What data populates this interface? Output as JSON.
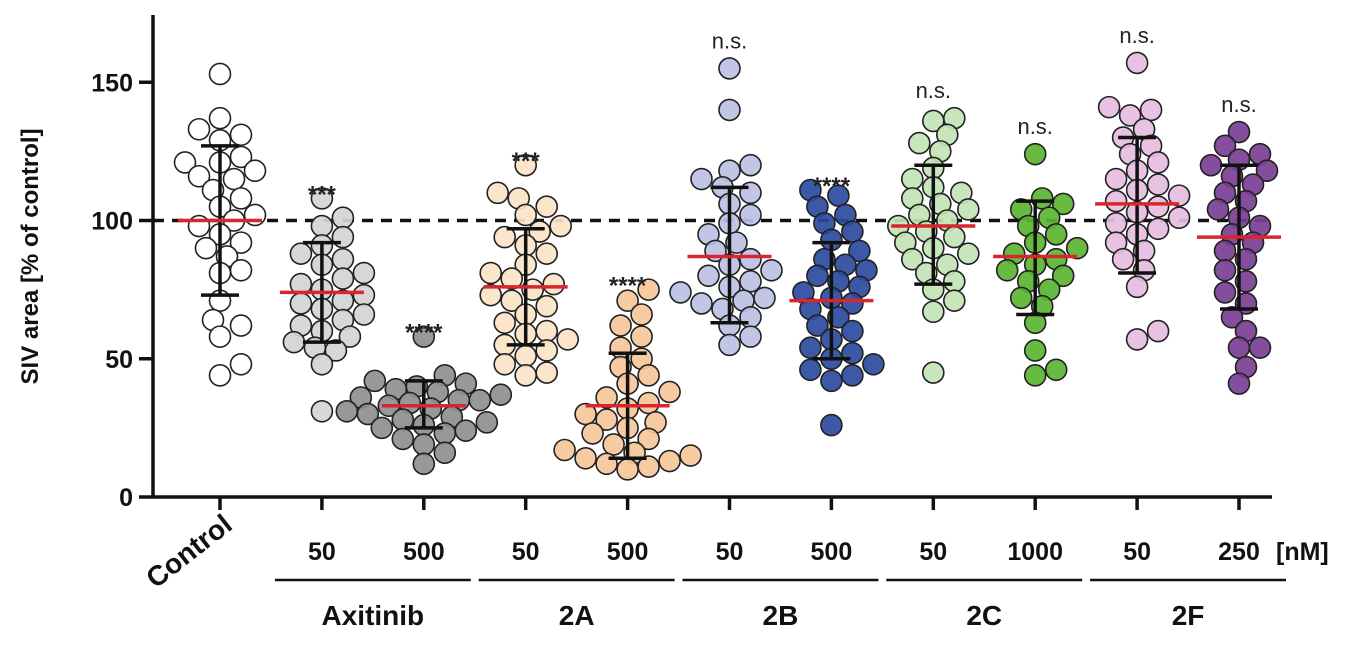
{
  "chart_data": {
    "type": "scatter",
    "subtype": "dot-plot with mean and SD error bars",
    "ylabel": "SIV area [% of control]",
    "ylim": [
      0,
      175
    ],
    "yticks": [
      0,
      50,
      100,
      150
    ],
    "reference_line": 100,
    "unit_label": "[nM]",
    "categories": [
      {
        "label": "Control",
        "group": "",
        "fill": "#ffffff",
        "mean": 100,
        "sd_low": 73,
        "sd_high": 127,
        "significance": "",
        "values": [
          153,
          137,
          133,
          131,
          129,
          123,
          121,
          121,
          118,
          116,
          115,
          111,
          108,
          105,
          102,
          100,
          98,
          95,
          92,
          90,
          87,
          82,
          81,
          71,
          64,
          62,
          58,
          48,
          44
        ]
      },
      {
        "label": "50",
        "group": "Axitinib",
        "fill": "#d4d4d4",
        "mean": 74,
        "sd_low": 56,
        "sd_high": 92,
        "significance": "***",
        "values": [
          108,
          101,
          98,
          94,
          91,
          88,
          86,
          84,
          81,
          79,
          77,
          75,
          73,
          71,
          70,
          68,
          66,
          64,
          62,
          60,
          58,
          56,
          54,
          53,
          48,
          31
        ]
      },
      {
        "label": "500",
        "group": "Axitinib",
        "fill": "#8f8f8f",
        "mean": 33,
        "sd_low": 25,
        "sd_high": 42,
        "significance": "****",
        "values": [
          58,
          44,
          42,
          41,
          40,
          39,
          38,
          37,
          36,
          35,
          35,
          34,
          33,
          32,
          31,
          30,
          29,
          28,
          27,
          26,
          25,
          24,
          23,
          21,
          19,
          16,
          12
        ]
      },
      {
        "label": "50",
        "group": "2A",
        "fill": "#fbe4c8",
        "mean": 76,
        "sd_low": 55,
        "sd_high": 97,
        "significance": "***",
        "values": [
          120,
          110,
          108,
          105,
          102,
          98,
          96,
          94,
          91,
          88,
          84,
          81,
          79,
          77,
          75,
          73,
          71,
          69,
          66,
          63,
          60,
          59,
          57,
          55,
          53,
          51,
          48,
          45,
          44
        ]
      },
      {
        "label": "500",
        "group": "2A",
        "fill": "#f6c79a",
        "mean": 33,
        "sd_low": 14,
        "sd_high": 52,
        "significance": "****",
        "values": [
          75,
          71,
          66,
          62,
          58,
          54,
          50,
          47,
          44,
          41,
          38,
          36,
          34,
          32,
          30,
          28,
          27,
          25,
          23,
          21,
          19,
          17,
          16,
          15,
          14,
          13,
          12,
          11,
          10
        ]
      },
      {
        "label": "50",
        "group": "2B",
        "fill": "#bcc0e4",
        "mean": 87,
        "sd_low": 63,
        "sd_high": 112,
        "significance": "n.s.",
        "values": [
          155,
          140,
          120,
          118,
          115,
          112,
          110,
          106,
          102,
          99,
          95,
          92,
          89,
          86,
          84,
          82,
          80,
          78,
          76,
          74,
          72,
          71,
          70,
          68,
          65,
          62,
          58,
          55
        ]
      },
      {
        "label": "500",
        "group": "2B",
        "fill": "#2b4ba0",
        "mean": 71,
        "sd_low": 50,
        "sd_high": 92,
        "significance": "****",
        "values": [
          111,
          109,
          105,
          102,
          99,
          96,
          93,
          89,
          86,
          84,
          82,
          80,
          78,
          76,
          74,
          72,
          70,
          68,
          65,
          62,
          60,
          57,
          54,
          52,
          50,
          48,
          46,
          44,
          42,
          26
        ]
      },
      {
        "label": "50",
        "group": "2C",
        "fill": "#c3e4b6",
        "mean": 98,
        "sd_low": 77,
        "sd_high": 120,
        "significance": "n.s.",
        "values": [
          137,
          136,
          131,
          128,
          125,
          119,
          115,
          112,
          110,
          108,
          106,
          104,
          102,
          100,
          98,
          96,
          94,
          92,
          90,
          88,
          86,
          84,
          81,
          78,
          75,
          71,
          67,
          45
        ]
      },
      {
        "label": "1000",
        "group": "2C",
        "fill": "#5bb531",
        "mean": 87,
        "sd_low": 66,
        "sd_high": 107,
        "significance": "n.s.",
        "values": [
          124,
          108,
          106,
          104,
          101,
          98,
          95,
          92,
          90,
          88,
          86,
          84,
          82,
          80,
          78,
          75,
          72,
          69,
          63,
          53,
          46,
          44
        ]
      },
      {
        "label": "50",
        "group": "2F",
        "fill": "#e6bde0",
        "mean": 106,
        "sd_low": 81,
        "sd_high": 130,
        "significance": "n.s.",
        "values": [
          157,
          141,
          140,
          138,
          133,
          130,
          127,
          124,
          121,
          118,
          115,
          113,
          111,
          109,
          107,
          105,
          103,
          101,
          99,
          97,
          95,
          92,
          89,
          86,
          82,
          76,
          60,
          57
        ]
      },
      {
        "label": "250",
        "group": "2F",
        "fill": "#7b3f94",
        "mean": 94,
        "sd_low": 68,
        "sd_high": 120,
        "significance": "n.s.",
        "values": [
          132,
          127,
          124,
          122,
          120,
          118,
          116,
          113,
          110,
          107,
          104,
          101,
          98,
          95,
          92,
          89,
          86,
          82,
          78,
          74,
          70,
          65,
          60,
          54,
          54,
          47,
          41
        ]
      }
    ],
    "groups": [
      {
        "name": "Axitinib",
        "members": [
          1,
          2
        ]
      },
      {
        "name": "2A",
        "members": [
          3,
          4
        ]
      },
      {
        "name": "2B",
        "members": [
          5,
          6
        ]
      },
      {
        "name": "2C",
        "members": [
          7,
          8
        ]
      },
      {
        "name": "2F",
        "members": [
          9,
          10
        ]
      }
    ]
  }
}
